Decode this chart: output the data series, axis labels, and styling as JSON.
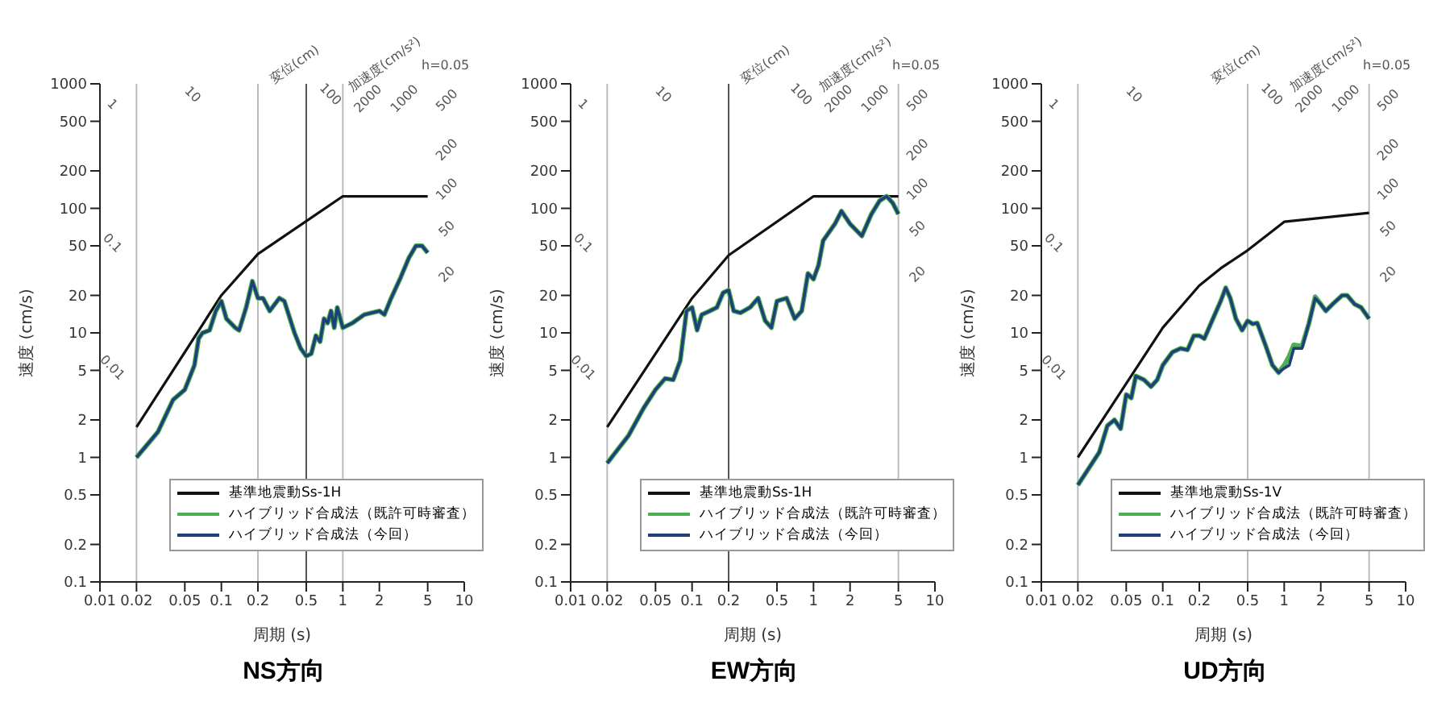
{
  "chart_data": [
    {
      "type": "line",
      "title": "NS方向",
      "xlabel": "周期 (s)",
      "ylabel": "速度 (cm/s)",
      "log": "xy",
      "legend": "bottom right",
      "marker": "none",
      "xlim": [
        0.01,
        10
      ],
      "ylim": [
        0.1,
        1000
      ],
      "xticks": [
        0.01,
        0.02,
        0.05,
        0.1,
        0.2,
        0.5,
        1,
        2,
        5,
        10
      ],
      "yticks": [
        0.1,
        0.2,
        0.5,
        1,
        2,
        5,
        10,
        20,
        50,
        100,
        200,
        500,
        1000
      ],
      "annotations": [
        "変位(cm)",
        "加速度(cm/s²)",
        "h=0.05",
        "0.01",
        "0.1",
        "1",
        "10",
        "100",
        "2000",
        "1000",
        "500",
        "200",
        "100",
        "50",
        "20"
      ],
      "ref_lines": [
        {
          "axis": "x",
          "value": 0.02,
          "color": "#bbbbbb"
        },
        {
          "axis": "x",
          "value": 0.2,
          "color": "#bbbbbb"
        },
        {
          "axis": "x",
          "value": 0.5,
          "color": "#555555"
        },
        {
          "axis": "x",
          "value": 1,
          "color": "#bbbbbb"
        }
      ],
      "series": [
        {
          "name": "基準地震動Ss-1H",
          "color": "#111111",
          "x": [
            0.02,
            0.1,
            0.2,
            1,
            5
          ],
          "values": [
            1.75,
            20,
            43,
            125,
            125
          ]
        },
        {
          "name": "ハイブリッド合成法（既許可時審査）",
          "color": "#4caf50",
          "x": [
            0.02,
            0.03,
            0.035,
            0.04,
            0.05,
            0.06,
            0.065,
            0.07,
            0.08,
            0.09,
            0.1,
            0.11,
            0.13,
            0.14,
            0.16,
            0.18,
            0.2,
            0.22,
            0.25,
            0.3,
            0.33,
            0.4,
            0.45,
            0.5,
            0.55,
            0.6,
            0.65,
            0.7,
            0.75,
            0.8,
            0.85,
            0.9,
            1,
            1.1,
            1.2,
            1.5,
            2,
            2.2,
            2.5,
            3,
            3.5,
            4,
            4.5,
            5
          ],
          "values": [
            1,
            1.6,
            2.2,
            2.9,
            3.5,
            5.5,
            9,
            10,
            10.5,
            15,
            18,
            13,
            11,
            10.5,
            16,
            26,
            19,
            19,
            15,
            19,
            18,
            10,
            7.5,
            6.5,
            6.8,
            9.5,
            8.5,
            13,
            12,
            15,
            11,
            16,
            11,
            11.5,
            12,
            14,
            15,
            14,
            19,
            28,
            40,
            50,
            50,
            44
          ]
        },
        {
          "name": "ハイブリッド合成法（今回）",
          "color": "#1f3f7a",
          "x": [
            0.02,
            0.03,
            0.035,
            0.04,
            0.05,
            0.06,
            0.065,
            0.07,
            0.08,
            0.09,
            0.1,
            0.11,
            0.13,
            0.14,
            0.16,
            0.18,
            0.2,
            0.22,
            0.25,
            0.3,
            0.33,
            0.4,
            0.45,
            0.5,
            0.55,
            0.6,
            0.65,
            0.7,
            0.75,
            0.8,
            0.85,
            0.9,
            1,
            1.1,
            1.2,
            1.5,
            2,
            2.2,
            2.5,
            3,
            3.5,
            4,
            4.5,
            5
          ],
          "values": [
            1,
            1.6,
            2.2,
            2.9,
            3.5,
            5.5,
            9,
            10,
            10.5,
            15,
            18,
            13,
            11,
            10.5,
            16,
            26,
            19,
            19,
            15,
            19,
            18,
            10,
            7.5,
            6.5,
            6.8,
            9.5,
            8.5,
            13,
            12,
            15,
            11,
            16,
            11,
            11.5,
            12,
            14,
            15,
            14,
            19,
            28,
            40,
            50,
            50,
            44
          ]
        }
      ]
    },
    {
      "type": "line",
      "title": "EW方向",
      "xlabel": "周期 (s)",
      "ylabel": "速度 (cm/s)",
      "log": "xy",
      "legend": "bottom right",
      "marker": "none",
      "xlim": [
        0.01,
        10
      ],
      "ylim": [
        0.1,
        1000
      ],
      "xticks": [
        0.01,
        0.02,
        0.05,
        0.1,
        0.2,
        0.5,
        1,
        2,
        5,
        10
      ],
      "yticks": [
        0.1,
        0.2,
        0.5,
        1,
        2,
        5,
        10,
        20,
        50,
        100,
        200,
        500,
        1000
      ],
      "annotations": [
        "変位(cm)",
        "加速度(cm/s²)",
        "h=0.05",
        "0.01",
        "0.1",
        "1",
        "10",
        "100",
        "2000",
        "1000",
        "500",
        "200",
        "100",
        "50",
        "20"
      ],
      "ref_lines": [
        {
          "axis": "x",
          "value": 0.02,
          "color": "#bbbbbb"
        },
        {
          "axis": "x",
          "value": 0.2,
          "color": "#555555"
        },
        {
          "axis": "x",
          "value": 5,
          "color": "#bbbbbb"
        }
      ],
      "series": [
        {
          "name": "基準地震動Ss-1H",
          "color": "#111111",
          "x": [
            0.02,
            0.1,
            0.2,
            1,
            5
          ],
          "values": [
            1.75,
            19,
            42,
            125,
            125
          ]
        },
        {
          "name": "ハイブリッド合成法（既許可時審査）",
          "color": "#4caf50",
          "x": [
            0.02,
            0.03,
            0.04,
            0.05,
            0.06,
            0.07,
            0.08,
            0.09,
            0.1,
            0.11,
            0.12,
            0.14,
            0.16,
            0.18,
            0.2,
            0.22,
            0.25,
            0.3,
            0.35,
            0.4,
            0.45,
            0.5,
            0.6,
            0.7,
            0.8,
            0.9,
            1,
            1.1,
            1.2,
            1.5,
            1.7,
            2,
            2.5,
            3,
            3.5,
            4,
            4.5,
            5
          ],
          "values": [
            0.9,
            1.5,
            2.5,
            3.5,
            4.3,
            4.2,
            6,
            15,
            16,
            10.5,
            14,
            15,
            16,
            21,
            22,
            15,
            14.5,
            16,
            19,
            12.5,
            11,
            18,
            19,
            13,
            15,
            30,
            27,
            35,
            55,
            75,
            95,
            75,
            60,
            90,
            115,
            125,
            110,
            90
          ]
        },
        {
          "name": "ハイブリッド合成法（今回）",
          "color": "#1f3f7a",
          "x": [
            0.02,
            0.03,
            0.04,
            0.05,
            0.06,
            0.07,
            0.08,
            0.09,
            0.1,
            0.11,
            0.12,
            0.14,
            0.16,
            0.18,
            0.2,
            0.22,
            0.25,
            0.3,
            0.35,
            0.4,
            0.45,
            0.5,
            0.6,
            0.7,
            0.8,
            0.9,
            1,
            1.1,
            1.2,
            1.5,
            1.7,
            2,
            2.5,
            3,
            3.5,
            4,
            4.5,
            5
          ],
          "values": [
            0.9,
            1.5,
            2.5,
            3.5,
            4.3,
            4.2,
            6,
            15,
            16,
            10.5,
            14,
            15,
            16,
            21,
            22,
            15,
            14.5,
            16,
            19,
            12.5,
            11,
            18,
            19,
            13,
            15,
            30,
            27,
            35,
            55,
            75,
            95,
            75,
            60,
            90,
            115,
            125,
            110,
            90
          ]
        }
      ]
    },
    {
      "type": "line",
      "title": "UD方向",
      "xlabel": "周期 (s)",
      "ylabel": "速度 (cm/s)",
      "log": "xy",
      "legend": "bottom right",
      "marker": "none",
      "xlim": [
        0.01,
        10
      ],
      "ylim": [
        0.1,
        1000
      ],
      "xticks": [
        0.01,
        0.02,
        0.05,
        0.1,
        0.2,
        0.5,
        1,
        2,
        5,
        10
      ],
      "yticks": [
        0.1,
        0.2,
        0.5,
        1,
        2,
        5,
        10,
        20,
        50,
        100,
        200,
        500,
        1000
      ],
      "annotations": [
        "変位(cm)",
        "加速度(cm/s²)",
        "h=0.05",
        "0.01",
        "0.1",
        "1",
        "10",
        "100",
        "2000",
        "1000",
        "500",
        "200",
        "100",
        "50",
        "20"
      ],
      "ref_lines": [
        {
          "axis": "x",
          "value": 0.02,
          "color": "#bbbbbb"
        },
        {
          "axis": "x",
          "value": 0.5,
          "color": "#bbbbbb"
        },
        {
          "axis": "x",
          "value": 5,
          "color": "#bbbbbb"
        }
      ],
      "series": [
        {
          "name": "基準地震動Ss-1V",
          "color": "#111111",
          "x": [
            0.02,
            0.1,
            0.2,
            0.3,
            0.5,
            1,
            5
          ],
          "values": [
            1,
            11,
            24,
            33,
            46,
            78,
            92
          ]
        },
        {
          "name": "ハイブリッド合成法（既許可時審査）",
          "color": "#4caf50",
          "x": [
            0.02,
            0.03,
            0.035,
            0.04,
            0.045,
            0.05,
            0.055,
            0.06,
            0.07,
            0.08,
            0.09,
            0.1,
            0.12,
            0.14,
            0.16,
            0.18,
            0.2,
            0.22,
            0.25,
            0.3,
            0.33,
            0.36,
            0.4,
            0.45,
            0.5,
            0.55,
            0.6,
            0.7,
            0.8,
            0.9,
            1,
            1.1,
            1.2,
            1.4,
            1.6,
            1.8,
            2,
            2.2,
            2.5,
            3,
            3.3,
            3.8,
            4.3,
            5
          ],
          "values": [
            0.6,
            1.1,
            1.8,
            2,
            1.7,
            3.2,
            3,
            4.5,
            4.2,
            3.7,
            4.2,
            5.5,
            7,
            7.5,
            7.3,
            9.5,
            9.5,
            9,
            12,
            18,
            23,
            19,
            13,
            10.5,
            12.5,
            11.8,
            12,
            8,
            5.5,
            4.8,
            5.5,
            6.5,
            8,
            7.8,
            12,
            19.5,
            17,
            15,
            17,
            20,
            20,
            17,
            16,
            13
          ]
        },
        {
          "name": "ハイブリッド合成法（今回）",
          "color": "#1f3f7a",
          "x": [
            0.02,
            0.03,
            0.035,
            0.04,
            0.045,
            0.05,
            0.055,
            0.06,
            0.07,
            0.08,
            0.09,
            0.1,
            0.12,
            0.14,
            0.16,
            0.18,
            0.2,
            0.22,
            0.25,
            0.3,
            0.33,
            0.36,
            0.4,
            0.45,
            0.5,
            0.55,
            0.6,
            0.7,
            0.8,
            0.9,
            1,
            1.1,
            1.2,
            1.4,
            1.6,
            1.8,
            2,
            2.2,
            2.5,
            3,
            3.3,
            3.8,
            4.3,
            5
          ],
          "values": [
            0.6,
            1.1,
            1.8,
            2,
            1.7,
            3.2,
            3,
            4.5,
            4.2,
            3.7,
            4.2,
            5.5,
            7,
            7.5,
            7.3,
            9.5,
            9.5,
            9,
            12,
            18,
            23,
            19,
            13,
            10.5,
            12.5,
            11.8,
            12,
            8,
            5.5,
            4.8,
            5.2,
            5.5,
            7.5,
            7.5,
            12,
            19,
            17,
            15,
            17,
            20,
            20,
            17,
            16,
            13
          ]
        }
      ]
    }
  ]
}
